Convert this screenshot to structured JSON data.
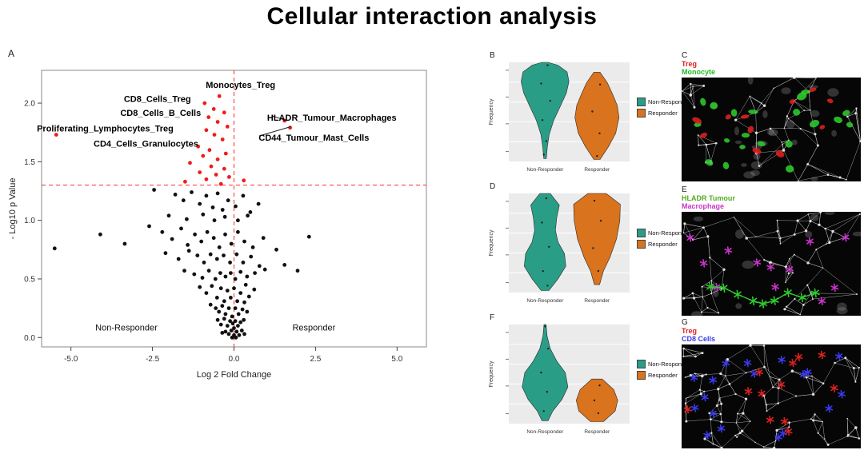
{
  "title": "Cellular interaction analysis",
  "colors": {
    "non_responder": "#2a9d87",
    "responder": "#d9731d",
    "significant": "#ee1c1c",
    "point": "#111111",
    "threshold_line": "#ff2a2a"
  },
  "legend": {
    "non_responder": "Non-Responder",
    "responder": "Responder"
  },
  "panels": {
    "A": {
      "label": "A"
    },
    "B": {
      "label": "B"
    },
    "C": {
      "label": "C"
    },
    "D": {
      "label": "D"
    },
    "E": {
      "label": "E"
    },
    "F": {
      "label": "F"
    },
    "G": {
      "label": "G"
    }
  },
  "chart_data": [
    {
      "panel": "A",
      "type": "scatter",
      "xlabel": "Log 2 Fold Change",
      "ylabel": "- Log10 p Value",
      "xlim": [
        -5.9,
        5.9
      ],
      "ylim": [
        -0.08,
        2.28
      ],
      "xticks": [
        "-5.0",
        "-2.5",
        "0.0",
        "2.5",
        "5.0"
      ],
      "xtick_values": [
        -5,
        -2.5,
        0,
        2.5,
        5
      ],
      "yticks": [
        "0.0",
        "0.5",
        "1.0",
        "1.5",
        "2.0"
      ],
      "ytick_values": [
        0,
        0.5,
        1,
        1.5,
        2
      ],
      "hline": 1.3,
      "vline": 0,
      "group_labels": [
        {
          "text": "Non-Responder",
          "x": -3.3,
          "y": 0.06
        },
        {
          "text": "Responder",
          "x": 2.45,
          "y": 0.06
        }
      ],
      "annotations": [
        {
          "text": "CD8_Cells_Treg",
          "x": -2.35,
          "y": 2.03,
          "line_to": null
        },
        {
          "text": "Monocytes_Treg",
          "x": 0.2,
          "y": 2.15,
          "line_to": null
        },
        {
          "text": "CD8_Cells_B_Cells",
          "x": -2.25,
          "y": 1.91,
          "line_to": null
        },
        {
          "text": "HLADR_Tumour_Macrophages",
          "x": 3.0,
          "y": 1.87,
          "line_to": [
            1.62,
            1.85
          ]
        },
        {
          "text": "Proliferating_Lymphocytes_Treg",
          "x": -3.95,
          "y": 1.78,
          "line_to": null
        },
        {
          "text": "CD44_Tumour_Mast_Cells",
          "x": 2.45,
          "y": 1.7,
          "line_to": [
            1.75,
            1.8
          ]
        },
        {
          "text": "CD4_Cells_Granulocytes",
          "x": -2.7,
          "y": 1.65,
          "line_to": null
        }
      ],
      "significant": [
        [
          -0.45,
          2.06
        ],
        [
          -0.9,
          2.0
        ],
        [
          -0.62,
          1.95
        ],
        [
          -0.3,
          1.92
        ],
        [
          -0.78,
          1.88
        ],
        [
          1.55,
          1.85
        ],
        [
          -0.5,
          1.84
        ],
        [
          -0.2,
          1.8
        ],
        [
          -0.85,
          1.77
        ],
        [
          1.72,
          1.79
        ],
        [
          -5.45,
          1.73
        ],
        [
          -0.6,
          1.73
        ],
        [
          -0.35,
          1.69
        ],
        [
          -1.1,
          1.63
        ],
        [
          -0.75,
          1.6
        ],
        [
          -0.25,
          1.57
        ],
        [
          -0.95,
          1.55
        ],
        [
          -0.5,
          1.52
        ],
        [
          -1.35,
          1.49
        ],
        [
          -0.7,
          1.46
        ],
        [
          -0.3,
          1.44
        ],
        [
          -1.05,
          1.41
        ],
        [
          -0.55,
          1.39
        ],
        [
          -0.15,
          1.37
        ],
        [
          -0.85,
          1.35
        ],
        [
          -1.5,
          1.33
        ],
        [
          0.3,
          1.34
        ],
        [
          -0.4,
          1.31
        ]
      ],
      "points": [
        [
          -2.45,
          1.26
        ],
        [
          -1.8,
          1.22
        ],
        [
          -1.55,
          1.17
        ],
        [
          -1.3,
          1.24
        ],
        [
          -1.05,
          1.14
        ],
        [
          -0.85,
          1.21
        ],
        [
          -0.65,
          1.11
        ],
        [
          -0.5,
          1.23
        ],
        [
          -0.35,
          1.09
        ],
        [
          -0.18,
          1.17
        ],
        [
          0.05,
          1.12
        ],
        [
          0.28,
          1.21
        ],
        [
          0.5,
          1.07
        ],
        [
          0.75,
          1.14
        ],
        [
          -2.0,
          1.04
        ],
        [
          -1.45,
          1.01
        ],
        [
          -0.95,
          1.05
        ],
        [
          -0.6,
          1.0
        ],
        [
          -0.28,
          1.03
        ],
        [
          0.12,
          1.0
        ],
        [
          0.42,
          1.04
        ],
        [
          -4.1,
          0.88
        ],
        [
          -3.35,
          0.8
        ],
        [
          -2.6,
          0.95
        ],
        [
          -2.2,
          0.9
        ],
        [
          -1.9,
          0.84
        ],
        [
          -1.62,
          0.93
        ],
        [
          -1.42,
          0.79
        ],
        [
          -1.2,
          0.88
        ],
        [
          -1.0,
          0.82
        ],
        [
          -0.82,
          0.9
        ],
        [
          -0.62,
          0.85
        ],
        [
          -0.45,
          0.77
        ],
        [
          -0.27,
          0.88
        ],
        [
          -0.08,
          0.8
        ],
        [
          0.12,
          0.9
        ],
        [
          0.32,
          0.82
        ],
        [
          0.58,
          0.77
        ],
        [
          0.9,
          0.85
        ],
        [
          1.3,
          0.75
        ],
        [
          2.3,
          0.86
        ],
        [
          -5.5,
          0.76
        ],
        [
          -2.1,
          0.72
        ],
        [
          -1.7,
          0.67
        ],
        [
          -1.38,
          0.74
        ],
        [
          -1.12,
          0.7
        ],
        [
          -0.92,
          0.64
        ],
        [
          -0.72,
          0.71
        ],
        [
          -0.52,
          0.67
        ],
        [
          -0.32,
          0.7
        ],
        [
          -0.12,
          0.64
        ],
        [
          0.08,
          0.71
        ],
        [
          0.28,
          0.64
        ],
        [
          0.52,
          0.69
        ],
        [
          0.78,
          0.61
        ],
        [
          1.55,
          0.62
        ],
        [
          1.95,
          0.57
        ],
        [
          -1.52,
          0.57
        ],
        [
          -1.22,
          0.54
        ],
        [
          -0.97,
          0.51
        ],
        [
          -0.77,
          0.57
        ],
        [
          -0.57,
          0.5
        ],
        [
          -0.42,
          0.55
        ],
        [
          -0.26,
          0.52
        ],
        [
          -0.1,
          0.55
        ],
        [
          0.04,
          0.5
        ],
        [
          0.2,
          0.56
        ],
        [
          0.4,
          0.52
        ],
        [
          0.64,
          0.55
        ],
        [
          0.95,
          0.58
        ],
        [
          -1.05,
          0.43
        ],
        [
          -0.85,
          0.38
        ],
        [
          -0.68,
          0.44
        ],
        [
          -0.52,
          0.34
        ],
        [
          -0.4,
          0.42
        ],
        [
          -0.3,
          0.31
        ],
        [
          -0.2,
          0.4
        ],
        [
          -0.1,
          0.34
        ],
        [
          0.0,
          0.42
        ],
        [
          0.1,
          0.31
        ],
        [
          0.2,
          0.38
        ],
        [
          0.32,
          0.3
        ],
        [
          0.46,
          0.35
        ],
        [
          0.62,
          0.41
        ],
        [
          0.36,
          0.45
        ],
        [
          -0.72,
          0.28
        ],
        [
          -0.56,
          0.25
        ],
        [
          -0.46,
          0.22
        ],
        [
          -0.36,
          0.27
        ],
        [
          -0.26,
          0.2
        ],
        [
          -0.16,
          0.25
        ],
        [
          -0.06,
          0.18
        ],
        [
          0.04,
          0.25
        ],
        [
          0.14,
          0.2
        ],
        [
          0.26,
          0.24
        ],
        [
          0.4,
          0.22
        ],
        [
          -0.5,
          0.15
        ],
        [
          -0.4,
          0.11
        ],
        [
          -0.3,
          0.16
        ],
        [
          -0.2,
          0.1
        ],
        [
          -0.12,
          0.14
        ],
        [
          -0.04,
          0.12
        ],
        [
          0.04,
          0.14
        ],
        [
          0.12,
          0.1
        ],
        [
          0.2,
          0.13
        ],
        [
          0.3,
          0.15
        ],
        [
          -0.26,
          0.05
        ],
        [
          -0.16,
          0.03
        ],
        [
          -0.08,
          0.06
        ],
        [
          0.0,
          0.02
        ],
        [
          0.08,
          0.05
        ],
        [
          0.16,
          0.02
        ],
        [
          0.24,
          0.06
        ],
        [
          -0.36,
          0.04
        ],
        [
          0.32,
          0.03
        ],
        [
          0.06,
          0.0
        ],
        [
          -0.06,
          0.0
        ],
        [
          0.0,
          0.08
        ]
      ]
    },
    {
      "panel": "B",
      "type": "violin",
      "ylabel": "Frequency",
      "categories": [
        "Non-Responder",
        "Responder"
      ],
      "legend": [
        "Non-Responder",
        "Responder"
      ],
      "violins": [
        {
          "group": "Non-Responder",
          "color_key": "non_responder",
          "span": [
            0.03,
            1.0
          ],
          "profile": [
            [
              0,
              0.05
            ],
            [
              0.12,
              0.09
            ],
            [
              0.25,
              0.16
            ],
            [
              0.4,
              0.34
            ],
            [
              0.55,
              0.6
            ],
            [
              0.68,
              0.82
            ],
            [
              0.8,
              0.92
            ],
            [
              0.9,
              0.85
            ],
            [
              0.97,
              0.5
            ],
            [
              1,
              0.12
            ]
          ]
        },
        {
          "group": "Responder",
          "color_key": "responder",
          "span": [
            0.02,
            0.9
          ],
          "profile": [
            [
              0,
              0.12
            ],
            [
              0.15,
              0.45
            ],
            [
              0.3,
              0.72
            ],
            [
              0.48,
              0.85
            ],
            [
              0.62,
              0.78
            ],
            [
              0.75,
              0.6
            ],
            [
              0.88,
              0.4
            ],
            [
              1,
              0.12
            ]
          ]
        }
      ],
      "jitter": [
        [
          0,
          0.97,
          0.1
        ],
        [
          0,
          0.78,
          -0.15
        ],
        [
          0,
          0.6,
          0.2
        ],
        [
          0,
          0.4,
          -0.1
        ],
        [
          0,
          0.18,
          0.05
        ],
        [
          0,
          0.04,
          -0.05
        ],
        [
          1,
          0.86,
          0.12
        ],
        [
          1,
          0.55,
          -0.18
        ],
        [
          1,
          0.3,
          0.1
        ],
        [
          1,
          0.04,
          0
        ]
      ]
    },
    {
      "panel": "D",
      "type": "violin",
      "ylabel": "Frequency",
      "categories": [
        "Non-Responder",
        "Responder"
      ],
      "legend": [
        "Non-Responder",
        "Responder"
      ],
      "violins": [
        {
          "group": "Non-Responder",
          "color_key": "non_responder",
          "span": [
            0.02,
            1.0
          ],
          "profile": [
            [
              0,
              0.15
            ],
            [
              0.12,
              0.5
            ],
            [
              0.25,
              0.8
            ],
            [
              0.38,
              0.75
            ],
            [
              0.5,
              0.5
            ],
            [
              0.62,
              0.4
            ],
            [
              0.75,
              0.45
            ],
            [
              0.88,
              0.55
            ],
            [
              1,
              0.2
            ]
          ]
        },
        {
          "group": "Responder",
          "color_key": "responder",
          "span": [
            0.08,
            1.0
          ],
          "profile": [
            [
              0,
              0.1
            ],
            [
              0.15,
              0.25
            ],
            [
              0.3,
              0.5
            ],
            [
              0.5,
              0.75
            ],
            [
              0.7,
              0.88
            ],
            [
              0.88,
              0.9
            ],
            [
              1,
              0.35
            ]
          ]
        }
      ],
      "jitter": [
        [
          0,
          0.95,
          0.05
        ],
        [
          0,
          0.7,
          -0.12
        ],
        [
          0,
          0.45,
          0.15
        ],
        [
          0,
          0.2,
          -0.08
        ],
        [
          0,
          0.05,
          0.1
        ],
        [
          1,
          0.92,
          -0.1
        ],
        [
          1,
          0.7,
          0.15
        ],
        [
          1,
          0.4,
          -0.15
        ],
        [
          1,
          0.15,
          0.05
        ]
      ]
    },
    {
      "panel": "F",
      "type": "violin",
      "ylabel": "Frequency",
      "categories": [
        "Non-Responder",
        "Responder"
      ],
      "legend": [
        "Non-Responder",
        "Responder"
      ],
      "violins": [
        {
          "group": "Non-Responder",
          "color_key": "non_responder",
          "span": [
            0.03,
            1.0
          ],
          "profile": [
            [
              0,
              0.12
            ],
            [
              0.1,
              0.3
            ],
            [
              0.22,
              0.65
            ],
            [
              0.35,
              0.88
            ],
            [
              0.5,
              0.78
            ],
            [
              0.62,
              0.45
            ],
            [
              0.75,
              0.2
            ],
            [
              0.88,
              0.08
            ],
            [
              1,
              0.04
            ]
          ]
        },
        {
          "group": "Responder",
          "color_key": "responder",
          "span": [
            0.02,
            0.45
          ],
          "profile": [
            [
              0,
              0.25
            ],
            [
              0.25,
              0.7
            ],
            [
              0.5,
              0.8
            ],
            [
              0.75,
              0.65
            ],
            [
              1,
              0.2
            ]
          ]
        }
      ],
      "jitter": [
        [
          0,
          0.98,
          0
        ],
        [
          0,
          0.75,
          0.12
        ],
        [
          0,
          0.5,
          -0.15
        ],
        [
          0,
          0.3,
          0.08
        ],
        [
          0,
          0.1,
          -0.05
        ],
        [
          1,
          0.85,
          0.1
        ],
        [
          1,
          0.5,
          -0.1
        ],
        [
          1,
          0.2,
          0.05
        ]
      ]
    },
    {
      "panel": "C",
      "type": "microscopy",
      "labels": [
        {
          "text": "Treg",
          "color": "#e02020"
        },
        {
          "text": "Monocyte",
          "color": "#22bb22"
        }
      ],
      "seed": 11,
      "mesh_points": 48,
      "bg_blobs": 22,
      "markers": [
        {
          "shape": "ellipse",
          "color": "#2ecc2e",
          "count": 20
        },
        {
          "shape": "ellipse",
          "color": "#e02020",
          "count": 11
        }
      ]
    },
    {
      "panel": "E",
      "type": "microscopy",
      "labels": [
        {
          "text": "HLADR Tumour",
          "color": "#55aa22"
        },
        {
          "text": "Macrophage",
          "color": "#cc33cc"
        }
      ],
      "seed": 23,
      "mesh_points": 60,
      "bg_blobs": 12,
      "markers": [
        {
          "shape": "star",
          "color": "#cc33cc",
          "count": 12
        }
      ],
      "cluster": {
        "color": "#2ecc2e",
        "count": 9
      }
    },
    {
      "panel": "G",
      "type": "microscopy",
      "labels": [
        {
          "text": "Treg",
          "color": "#e02020"
        },
        {
          "text": "CD8 Cells",
          "color": "#3a3aee"
        }
      ],
      "seed": 37,
      "mesh_points": 85,
      "bg_blobs": 0,
      "markers": [
        {
          "shape": "star",
          "color": "#3a3aee",
          "count": 18
        },
        {
          "shape": "star",
          "color": "#e02020",
          "count": 12
        }
      ]
    }
  ]
}
